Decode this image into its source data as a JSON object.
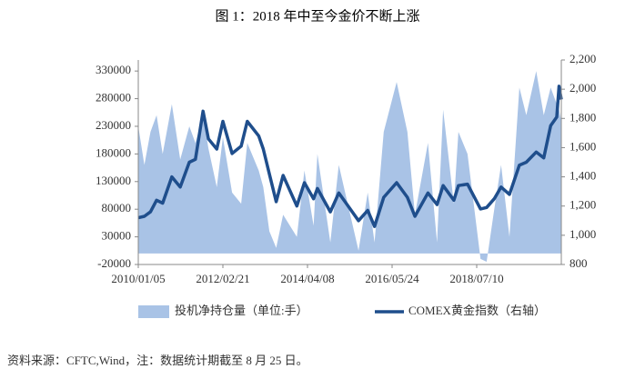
{
  "chart_data": {
    "type": "area-line",
    "title": "图 1：2018 年中至今金价不断上涨",
    "source": "资料来源：CFTC,Wind，注：数据统计期截至 8 月 25 日。",
    "x": [
      "2010/01/05",
      "2010/03/02",
      "2010/04/27",
      "2010/06/22",
      "2010/08/17",
      "2010/11/09",
      "2011/01/25",
      "2011/04/19",
      "2011/06/14",
      "2011/08/23",
      "2011/10/11",
      "2011/12/27",
      "2012/02/21",
      "2012/05/15",
      "2012/08/07",
      "2012/10/02",
      "2013/01/15",
      "2013/02/26",
      "2013/04/23",
      "2013/06/25",
      "2013/08/27",
      "2013/12/31",
      "2014/03/11",
      "2014/06/03",
      "2014/07/08",
      "2014/11/04",
      "2015/01/20",
      "2015/07/21",
      "2015/10/13",
      "2015/12/15",
      "2016/03/08",
      "2016/07/05",
      "2016/10/11",
      "2016/12/20",
      "2017/04/18",
      "2017/07/11",
      "2017/09/05",
      "2017/12/12",
      "2018/01/23",
      "2018/04/17",
      "2018/08/14",
      "2018/10/09",
      "2018/12/18",
      "2019/02/19",
      "2019/05/07",
      "2019/08/06",
      "2019/10/08",
      "2020/01/07",
      "2020/03/17",
      "2020/05/19",
      "2020/07/14",
      "2020/08/04",
      "2020/08/25"
    ],
    "xlim": [
      "2010/01/05",
      "2020/08/25"
    ],
    "xticks": [
      "2010/01/05",
      "2012/02/21",
      "2014/04/08",
      "2016/05/24",
      "2018/07/10"
    ],
    "series": [
      {
        "name": "投机净持仓量（单位:手）",
        "color": "#a9c3e6",
        "axis": "y",
        "values": [
          230000,
          160000,
          220000,
          250000,
          180000,
          270000,
          170000,
          230000,
          200000,
          250000,
          190000,
          120000,
          210000,
          110000,
          90000,
          200000,
          150000,
          120000,
          40000,
          10000,
          70000,
          30000,
          150000,
          50000,
          180000,
          20000,
          160000,
          5000,
          110000,
          20000,
          220000,
          310000,
          220000,
          70000,
          200000,
          20000,
          260000,
          90000,
          220000,
          180000,
          -10000,
          -15000,
          80000,
          160000,
          30000,
          300000,
          250000,
          330000,
          250000,
          300000,
          270000,
          260000,
          240000
        ]
      },
      {
        "name": "COMEX黄金指数（右轴）",
        "color": "#1f4e8c",
        "axis": "y2",
        "values": [
          1120,
          1130,
          1160,
          1240,
          1220,
          1400,
          1330,
          1500,
          1520,
          1850,
          1660,
          1590,
          1780,
          1560,
          1610,
          1780,
          1680,
          1590,
          1420,
          1230,
          1410,
          1200,
          1360,
          1250,
          1320,
          1160,
          1290,
          1100,
          1170,
          1060,
          1260,
          1360,
          1260,
          1130,
          1290,
          1210,
          1340,
          1240,
          1340,
          1350,
          1180,
          1190,
          1250,
          1330,
          1280,
          1480,
          1500,
          1570,
          1530,
          1750,
          1810,
          2020,
          1930
        ]
      }
    ],
    "ylim": [
      -20000,
      350000
    ],
    "yticks": [
      -20000,
      30000,
      80000,
      130000,
      180000,
      230000,
      280000,
      330000
    ],
    "y2lim": [
      800,
      2200
    ],
    "y2ticks": [
      800,
      {
        "value": 1000,
        "label": "1,000"
      },
      {
        "value": 1200,
        "label": "1,200"
      },
      {
        "value": 1400,
        "label": "1,400"
      },
      {
        "value": 1600,
        "label": "1,600"
      },
      {
        "value": 1800,
        "label": "1,800"
      },
      {
        "value": 2000,
        "label": "2,000"
      },
      {
        "value": 2200,
        "label": "2,200"
      }
    ]
  }
}
